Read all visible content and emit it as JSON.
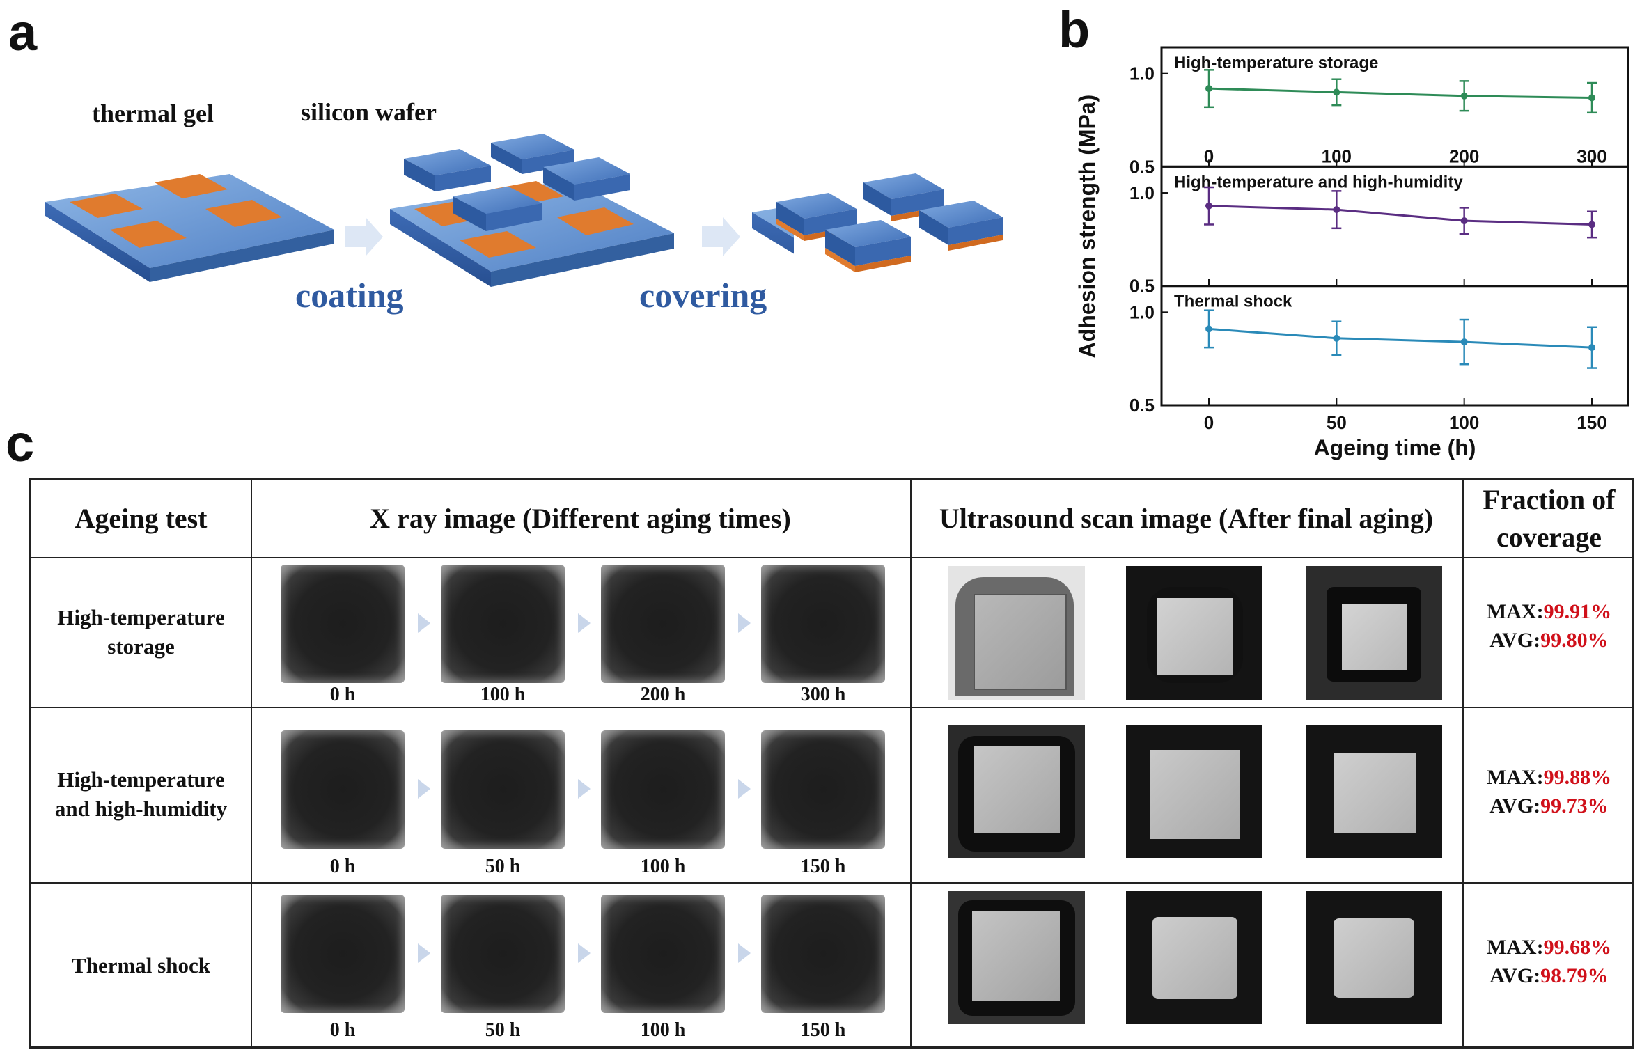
{
  "panel_letters": {
    "a": "a",
    "b": "b",
    "c": "c"
  },
  "panel_a": {
    "label_thermal_gel": "thermal gel",
    "label_silicon_wafer": "silicon wafer",
    "step_coating": "coating",
    "step_covering": "covering"
  },
  "chart_data": {
    "type": "line",
    "ylabel": "Adhesion strength (MPa)",
    "xlabel": "Ageing time (h)",
    "subplots": [
      {
        "title": "High-temperature storage",
        "x": [
          0,
          100,
          200,
          300
        ],
        "xticks": [
          "0",
          "100",
          "200",
          "300"
        ],
        "y": [
          0.92,
          0.9,
          0.88,
          0.87
        ],
        "err": [
          0.1,
          0.07,
          0.08,
          0.08
        ],
        "ylim": [
          0.5,
          1.0
        ],
        "yticks": [
          "1.0",
          "0.5"
        ],
        "color": "#2e8b57"
      },
      {
        "title": "High-temperature and high-humidity",
        "x": [
          0,
          50,
          100,
          150
        ],
        "y": [
          0.93,
          0.91,
          0.85,
          0.83
        ],
        "err": [
          0.1,
          0.1,
          0.07,
          0.07
        ],
        "ylim": [
          0.5,
          1.0
        ],
        "yticks": [
          "1.0",
          "0.5"
        ],
        "color": "#5a2d82"
      },
      {
        "title": "Thermal shock",
        "x": [
          0,
          50,
          100,
          150
        ],
        "xticks": [
          "0",
          "50",
          "100",
          "150"
        ],
        "y": [
          0.91,
          0.86,
          0.84,
          0.81
        ],
        "err": [
          0.1,
          0.09,
          0.12,
          0.11
        ],
        "ylim": [
          0.5,
          1.0
        ],
        "yticks": [
          "1.0",
          "0.5"
        ],
        "color": "#2a8ab8"
      }
    ]
  },
  "table": {
    "headers": {
      "ageing_test": "Ageing test",
      "xray": "X ray image (Different aging times)",
      "ultrasound": "Ultrasound scan image (After final aging)",
      "fraction_line1": "Fraction of",
      "fraction_line2": "coverage"
    },
    "rows": [
      {
        "label_line1": "High-temperature",
        "label_line2": "storage",
        "times": [
          "0 h",
          "100 h",
          "200 h",
          "300 h"
        ],
        "max_label": "MAX:",
        "max_value": "99.91%",
        "avg_label": "AVG:",
        "avg_value": "99.80%"
      },
      {
        "label_line1": "High-temperature",
        "label_line2": "and high-humidity",
        "times": [
          "0 h",
          "50 h",
          "100 h",
          "150 h"
        ],
        "max_label": "MAX:",
        "max_value": "99.88%",
        "avg_label": "AVG:",
        "avg_value": "99.73%"
      },
      {
        "label_line1": "Thermal shock",
        "label_line2": "",
        "times": [
          "0 h",
          "50 h",
          "100 h",
          "150 h"
        ],
        "max_label": "MAX:",
        "max_value": "99.68%",
        "avg_label": "AVG:",
        "avg_value": "98.79%"
      }
    ]
  }
}
